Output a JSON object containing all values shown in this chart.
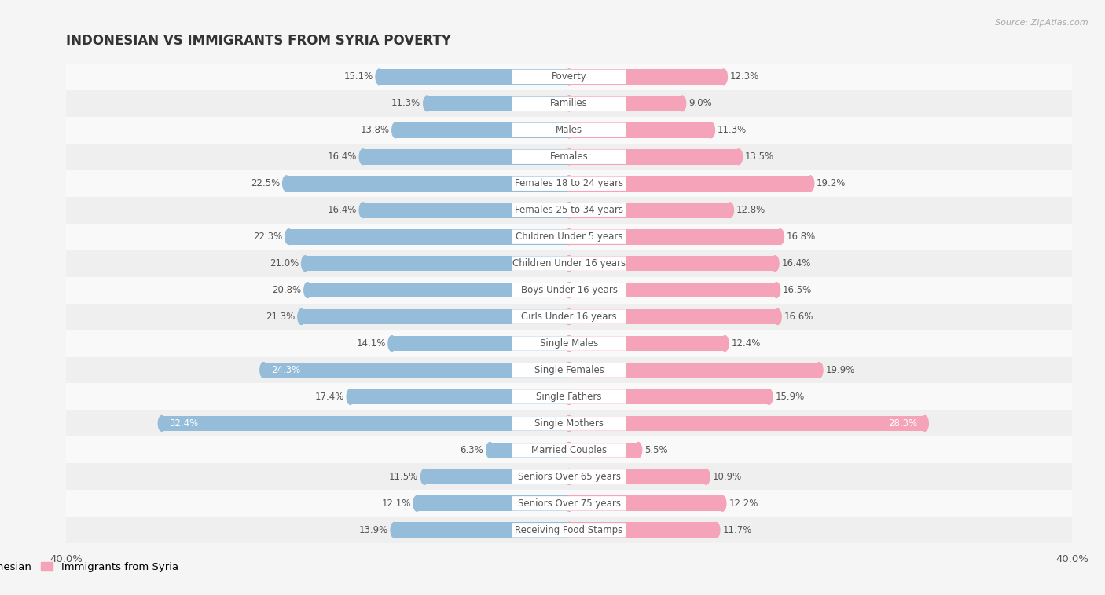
{
  "title": "INDONESIAN VS IMMIGRANTS FROM SYRIA POVERTY",
  "source": "Source: ZipAtlas.com",
  "categories": [
    "Poverty",
    "Families",
    "Males",
    "Females",
    "Females 18 to 24 years",
    "Females 25 to 34 years",
    "Children Under 5 years",
    "Children Under 16 years",
    "Boys Under 16 years",
    "Girls Under 16 years",
    "Single Males",
    "Single Females",
    "Single Fathers",
    "Single Mothers",
    "Married Couples",
    "Seniors Over 65 years",
    "Seniors Over 75 years",
    "Receiving Food Stamps"
  ],
  "indonesian": [
    15.1,
    11.3,
    13.8,
    16.4,
    22.5,
    16.4,
    22.3,
    21.0,
    20.8,
    21.3,
    14.1,
    24.3,
    17.4,
    32.4,
    6.3,
    11.5,
    12.1,
    13.9
  ],
  "syria": [
    12.3,
    9.0,
    11.3,
    13.5,
    19.2,
    12.8,
    16.8,
    16.4,
    16.5,
    16.6,
    12.4,
    19.9,
    15.9,
    28.3,
    5.5,
    10.9,
    12.2,
    11.7
  ],
  "indonesian_color": "#95bcd9",
  "syria_color": "#f4a3b8",
  "row_colors": [
    "#f9f9f9",
    "#efefef"
  ],
  "background_color": "#f5f5f5",
  "max_value": 40.0,
  "label_fontsize": 8.5,
  "title_fontsize": 12,
  "legend_fontsize": 9.5,
  "bar_height": 0.58,
  "inside_label_thresh_indo": 24.0,
  "inside_label_thresh_syria": 28.0
}
